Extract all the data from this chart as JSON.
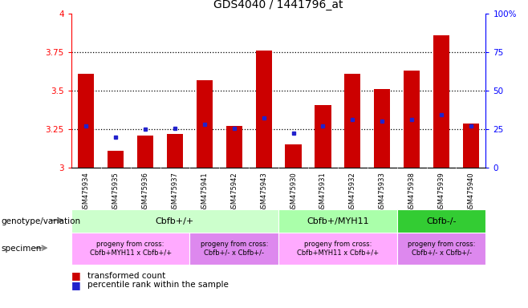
{
  "title": "GDS4040 / 1441796_at",
  "samples": [
    "GSM475934",
    "GSM475935",
    "GSM475936",
    "GSM475937",
    "GSM475941",
    "GSM475942",
    "GSM475943",
    "GSM475930",
    "GSM475931",
    "GSM475932",
    "GSM475933",
    "GSM475938",
    "GSM475939",
    "GSM475940"
  ],
  "bar_values": [
    3.61,
    3.11,
    3.21,
    3.22,
    3.57,
    3.27,
    3.76,
    3.15,
    3.41,
    3.61,
    3.51,
    3.63,
    3.86,
    3.29
  ],
  "percentile_values": [
    3.27,
    3.2,
    3.25,
    3.255,
    3.285,
    3.255,
    3.325,
    3.225,
    3.27,
    3.315,
    3.305,
    3.315,
    3.345,
    3.27
  ],
  "ymin": 3.0,
  "ymax": 4.0,
  "bar_color": "#cc0000",
  "dot_color": "#2222cc",
  "genotype_groups": [
    {
      "label": "Cbfb+/+",
      "start": 0,
      "end": 7,
      "color": "#ccffcc"
    },
    {
      "label": "Cbfb+/MYH11",
      "start": 7,
      "end": 11,
      "color": "#aaffaa"
    },
    {
      "label": "Cbfb-/-",
      "start": 11,
      "end": 14,
      "color": "#33cc33"
    }
  ],
  "specimen_groups": [
    {
      "label": "progeny from cross:\nCbfb+MYH11 x Cbfb+/+",
      "start": 0,
      "end": 4,
      "color": "#ffaaff"
    },
    {
      "label": "progeny from cross:\nCbfb+/- x Cbfb+/-",
      "start": 4,
      "end": 7,
      "color": "#dd88ee"
    },
    {
      "label": "progeny from cross:\nCbfb+MYH11 x Cbfb+/+",
      "start": 7,
      "end": 11,
      "color": "#ffaaff"
    },
    {
      "label": "progeny from cross:\nCbfb+/- x Cbfb+/-",
      "start": 11,
      "end": 14,
      "color": "#dd88ee"
    }
  ],
  "left_label_geno": "genotype/variation",
  "left_label_spec": "specimen",
  "legend1": "transformed count",
  "legend2": "percentile rank within the sample",
  "right_ytick_labels": [
    "0",
    "25",
    "50",
    "75",
    "100%"
  ],
  "right_yvals": [
    3.0,
    3.25,
    3.5,
    3.75,
    4.0
  ],
  "left_yticks": [
    3.0,
    3.25,
    3.5,
    3.75,
    4.0
  ],
  "left_ytick_labels": [
    "3",
    "3.25",
    "3.5",
    "3.75",
    "4"
  ],
  "dotted_lines": [
    3.25,
    3.5,
    3.75
  ],
  "bg_color": "#ffffff",
  "label_bg_color": "#cccccc"
}
